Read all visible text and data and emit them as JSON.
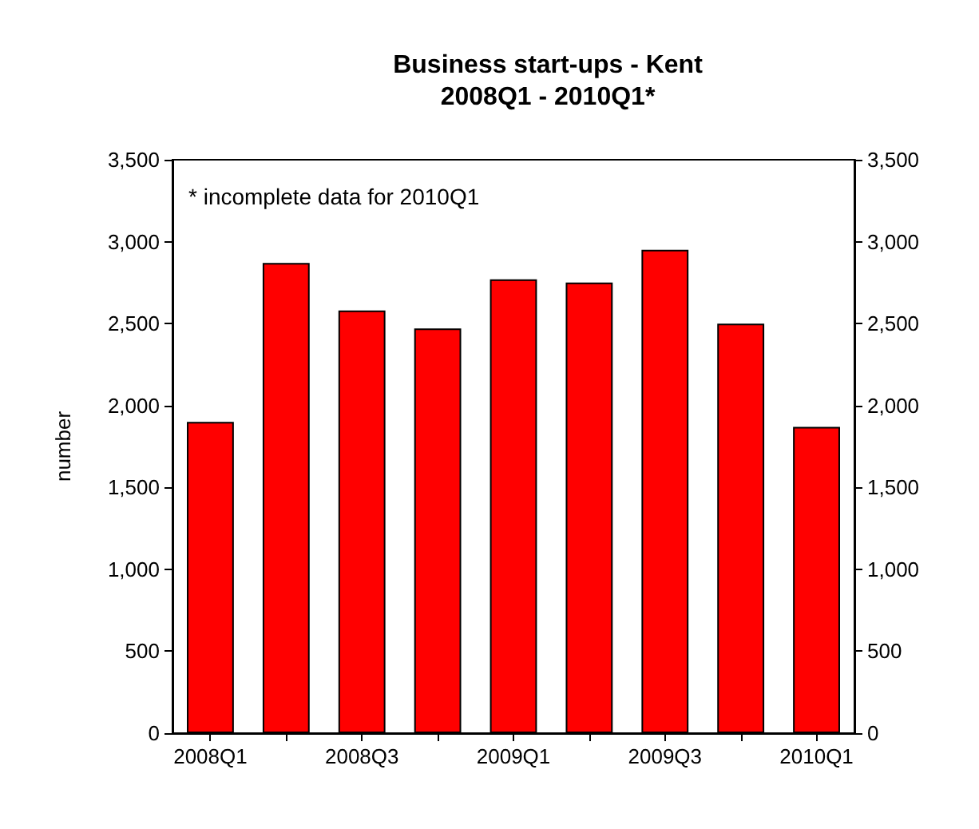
{
  "chart_data": {
    "type": "bar",
    "title": "Business start-ups - Kent\n2008Q1 - 2010Q1*",
    "ylabel": "number",
    "annotations": [
      "* incomplete data for 2010Q1"
    ],
    "categories": [
      "2008Q1",
      null,
      "2008Q3",
      null,
      "2009Q1",
      null,
      "2009Q3",
      null,
      "2010Q1"
    ],
    "values": [
      1900,
      2870,
      2580,
      2470,
      2770,
      2750,
      2950,
      2500,
      1870
    ],
    "color": "#ff0000",
    "ylim": [
      0,
      3500
    ],
    "yticks": [
      0,
      500,
      {
        "value": 1000,
        "label": "1,000"
      },
      {
        "value": 1500,
        "label": "1,500"
      },
      {
        "value": 2000,
        "label": "2,000"
      },
      {
        "value": 2500,
        "label": "2,500"
      },
      {
        "value": 3000,
        "label": "3,000"
      },
      {
        "value": 3500,
        "label": "3,500"
      }
    ],
    "y2lim": [
      0,
      3500
    ],
    "y2ticks": [
      0,
      500,
      {
        "value": 1000,
        "label": "1,000"
      },
      {
        "value": 1500,
        "label": "1,500"
      },
      {
        "value": 2000,
        "label": "2,000"
      },
      {
        "value": 2500,
        "label": "2,500"
      },
      {
        "value": 3000,
        "label": "3,000"
      },
      {
        "value": 3500,
        "label": "3,500"
      }
    ],
    "grid": false
  }
}
